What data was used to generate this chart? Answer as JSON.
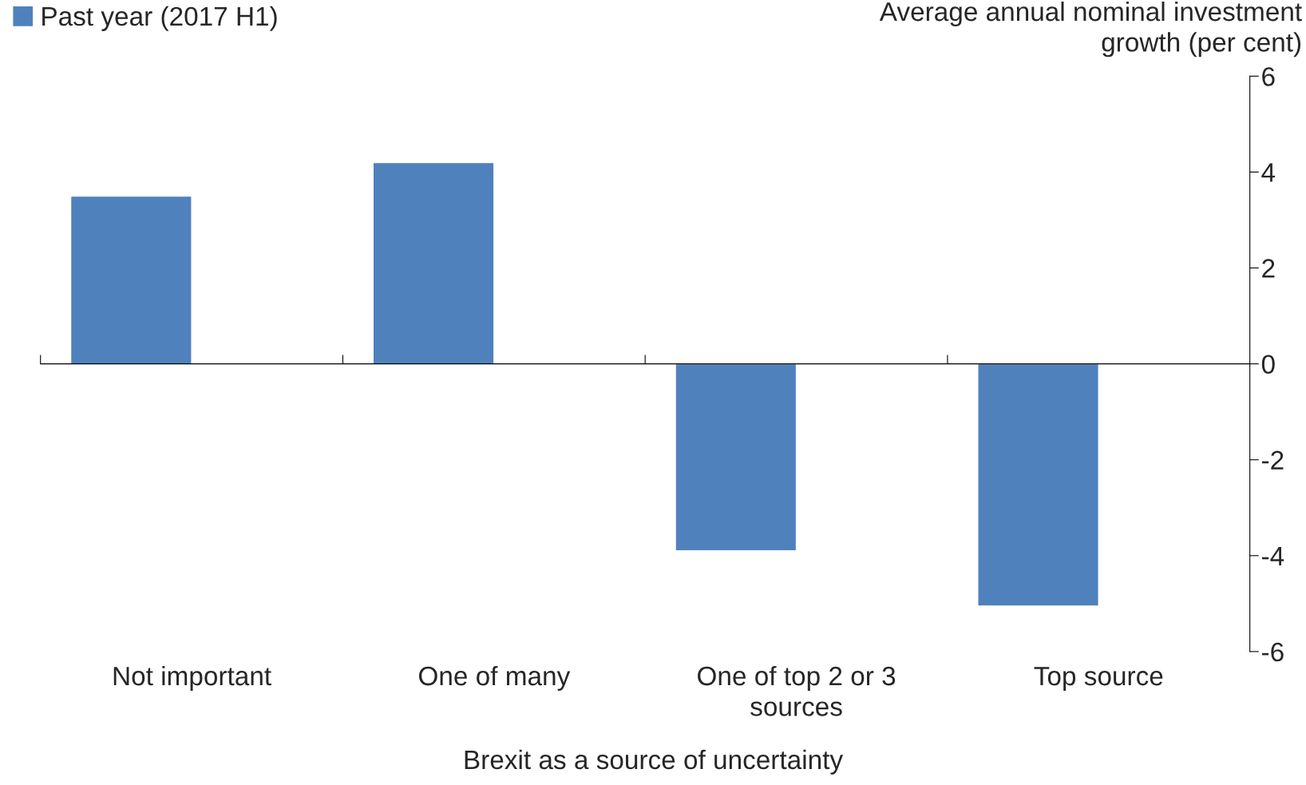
{
  "chart_data": {
    "type": "bar",
    "categories": [
      "Not important",
      "One of many",
      "One of top 2 or 3\nsources",
      "Top source"
    ],
    "series": [
      {
        "name": "Past year (2017 H1)",
        "color": "#4f81bd",
        "values": [
          3.5,
          4.2,
          -3.9,
          -5.05
        ]
      }
    ],
    "xlabel": "Brexit as a source of uncertainty",
    "ylabel": "Average annual nominal investment\ngrowth (per cent)",
    "ylim": [
      -6,
      6
    ],
    "yticks": [
      -6,
      -4,
      -2,
      0,
      2,
      4,
      6
    ],
    "legend": "top left"
  }
}
